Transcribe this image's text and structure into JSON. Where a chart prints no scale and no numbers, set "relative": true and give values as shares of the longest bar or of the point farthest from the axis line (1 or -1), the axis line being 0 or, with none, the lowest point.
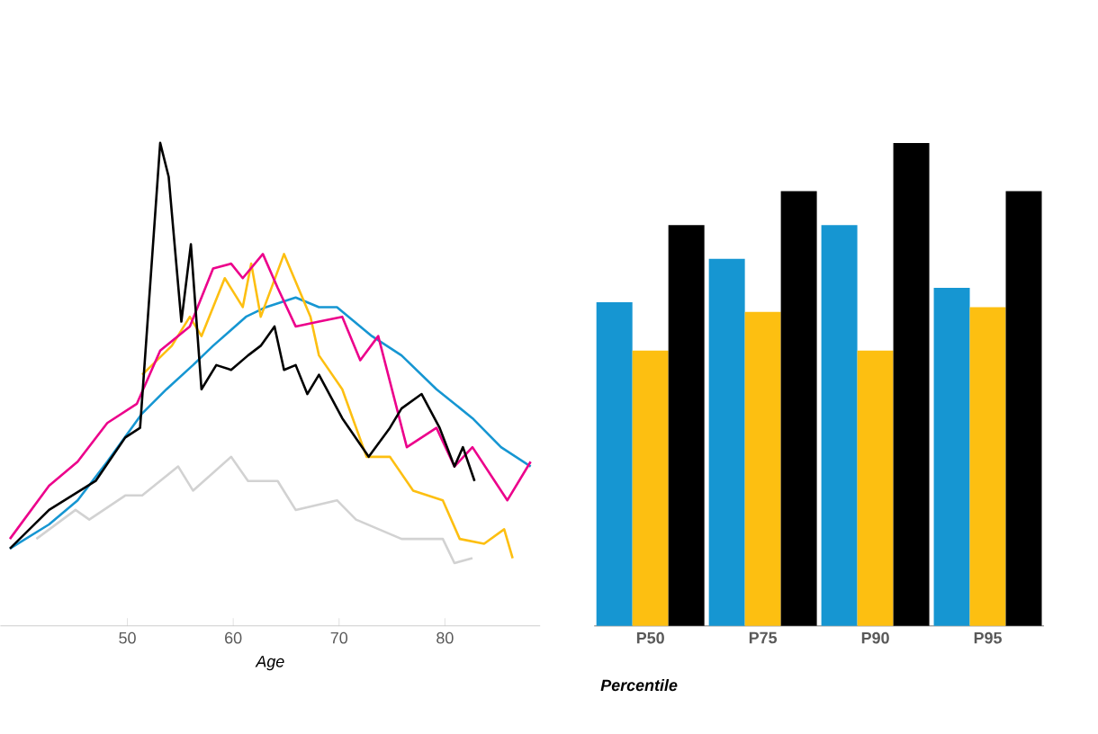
{
  "chart_data": [
    {
      "type": "line",
      "xlabel": "Age",
      "relative": true,
      "xlim": [
        38,
        89
      ],
      "xticks": [
        50,
        60,
        70,
        80
      ],
      "series": [
        {
          "color": "#d2d2d2",
          "x": [
            41.4,
            45.1,
            46.4,
            49.8,
            51.4,
            54.8,
            56.2,
            59.8,
            61.4,
            64.2,
            65.9,
            69.8,
            71.6,
            75.9,
            79.8,
            80.9,
            82.6
          ],
          "values": [
            0.18,
            0.24,
            0.22,
            0.27,
            0.27,
            0.33,
            0.28,
            0.35,
            0.3,
            0.3,
            0.24,
            0.26,
            0.22,
            0.18,
            0.18,
            0.13,
            0.14
          ]
        },
        {
          "color": "#1696d2",
          "x": [
            38.9,
            42.6,
            45.3,
            48.1,
            51.4,
            53.7,
            56.2,
            58.1,
            61.2,
            63.1,
            65.9,
            68.1,
            69.8,
            73.1,
            75.9,
            79.2,
            82.6,
            85.3,
            88.1
          ],
          "values": [
            0.16,
            0.21,
            0.26,
            0.34,
            0.44,
            0.49,
            0.54,
            0.58,
            0.64,
            0.66,
            0.68,
            0.66,
            0.66,
            0.6,
            0.56,
            0.49,
            0.43,
            0.37,
            0.33
          ]
        },
        {
          "color": "#fdbf11",
          "x": [
            51.4,
            54.2,
            55.9,
            57.0,
            59.2,
            60.9,
            61.7,
            62.6,
            64.8,
            67.3,
            68.1,
            70.3,
            72.6,
            74.8,
            77.0,
            79.8,
            81.4,
            83.7,
            85.6,
            86.4
          ],
          "values": [
            0.52,
            0.58,
            0.64,
            0.6,
            0.72,
            0.66,
            0.75,
            0.64,
            0.77,
            0.64,
            0.56,
            0.49,
            0.35,
            0.35,
            0.28,
            0.26,
            0.18,
            0.17,
            0.2,
            0.14
          ]
        },
        {
          "color": "#ec008b",
          "x": [
            38.9,
            42.6,
            45.3,
            48.1,
            50.9,
            53.1,
            55.9,
            58.1,
            59.8,
            60.9,
            62.8,
            64.2,
            65.9,
            68.1,
            70.3,
            72.0,
            73.7,
            76.4,
            79.2,
            80.9,
            82.6,
            85.9,
            88.1
          ],
          "values": [
            0.18,
            0.29,
            0.34,
            0.42,
            0.46,
            0.57,
            0.62,
            0.74,
            0.75,
            0.72,
            0.77,
            0.7,
            0.62,
            0.63,
            0.64,
            0.55,
            0.6,
            0.37,
            0.41,
            0.33,
            0.37,
            0.26,
            0.34
          ]
        },
        {
          "color": "#000000",
          "x": [
            38.9,
            42.6,
            47.0,
            49.8,
            51.2,
            53.1,
            53.9,
            55.1,
            56.0,
            57.0,
            58.4,
            59.8,
            61.4,
            62.6,
            63.9,
            64.8,
            65.9,
            67.0,
            68.1,
            70.3,
            72.8,
            74.8,
            75.9,
            77.8,
            79.5,
            80.9,
            81.7,
            82.8
          ],
          "values": [
            0.16,
            0.24,
            0.3,
            0.39,
            0.41,
            1.0,
            0.93,
            0.63,
            0.79,
            0.49,
            0.54,
            0.53,
            0.56,
            0.58,
            0.62,
            0.53,
            0.54,
            0.48,
            0.52,
            0.43,
            0.35,
            0.41,
            0.45,
            0.48,
            0.41,
            0.33,
            0.37,
            0.3
          ]
        }
      ]
    },
    {
      "type": "bar",
      "xlabel": "Percentile",
      "relative": true,
      "categories": [
        "P50",
        "P75",
        "P90",
        "P95"
      ],
      "series": [
        {
          "color": "#1696d2",
          "values": [
            0.67,
            0.76,
            0.83,
            0.7
          ]
        },
        {
          "color": "#fdbf11",
          "values": [
            0.57,
            0.65,
            0.57,
            0.66
          ]
        },
        {
          "color": "#000000",
          "values": [
            0.83,
            0.9,
            1.0,
            0.9
          ]
        }
      ]
    }
  ]
}
